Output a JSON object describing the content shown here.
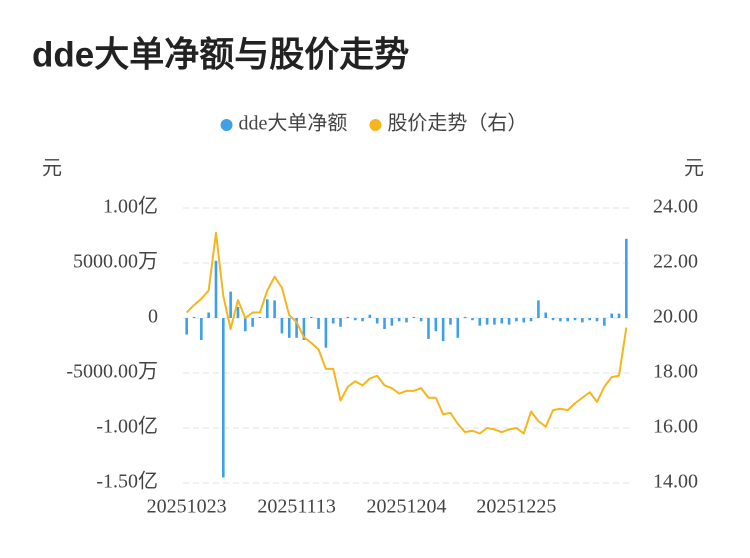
{
  "chart_data": {
    "type": "bar-line",
    "title": "dde大单净额与股价走势",
    "y_label": "元",
    "y2_label": "元",
    "categories": [
      "20251023",
      null,
      null,
      null,
      null,
      null,
      null,
      null,
      null,
      null,
      null,
      null,
      null,
      null,
      null,
      "20251113",
      null,
      null,
      null,
      null,
      null,
      null,
      null,
      null,
      null,
      null,
      null,
      null,
      null,
      null,
      "20251204",
      null,
      null,
      null,
      null,
      null,
      null,
      null,
      null,
      null,
      null,
      null,
      null,
      null,
      null,
      "20251225",
      null,
      null,
      null,
      null,
      null,
      null,
      null,
      null,
      null,
      null,
      null,
      null,
      null,
      null,
      null
    ],
    "series": [
      {
        "name": "dde大单净额",
        "color": "#3ea0e8",
        "type": "bar",
        "values": [
          -15000000,
          1000000,
          -20000000,
          5000000,
          52000000,
          -145000000,
          24000000,
          10000000,
          -12000000,
          -8000000,
          1000000,
          17000000,
          16000000,
          -14000000,
          -18000000,
          -18000000,
          -20000000,
          1000000,
          -10000000,
          -27000000,
          -5000000,
          -8000000,
          1000000,
          -2000000,
          -3000000,
          3000000,
          -5000000,
          -10000000,
          -7000000,
          -3000000,
          -4000000,
          1000000,
          -3000000,
          -19000000,
          -12000000,
          -21000000,
          -6000000,
          -18000000,
          1000000,
          -2000000,
          -7000000,
          -6000000,
          -6000000,
          -5000000,
          -6000000,
          -3000000,
          -4000000,
          -3000000,
          16000000,
          5000000,
          -2000000,
          -3000000,
          -3000000,
          -2000000,
          -4000000,
          -2000000,
          -3000000,
          -7000000,
          4000000,
          4000000,
          72000000
        ]
      },
      {
        "name": "股价走势（右）",
        "color": "#f5b51e",
        "type": "line",
        "axis": "y2",
        "values": [
          20.2,
          20.47,
          20.7,
          21.0,
          23.1,
          20.8,
          19.6,
          20.65,
          20.0,
          20.2,
          20.2,
          21.0,
          21.5,
          21.1,
          20.1,
          19.85,
          19.3,
          19.1,
          18.85,
          18.15,
          18.15,
          17.0,
          17.5,
          17.7,
          17.55,
          17.8,
          17.9,
          17.55,
          17.45,
          17.25,
          17.35,
          17.35,
          17.45,
          17.1,
          17.1,
          16.5,
          16.55,
          16.15,
          15.85,
          15.9,
          15.8,
          16.0,
          15.95,
          15.85,
          15.95,
          16.0,
          15.8,
          16.6,
          16.25,
          16.05,
          16.65,
          16.7,
          16.65,
          16.9,
          17.1,
          17.3,
          16.95,
          17.5,
          17.85,
          17.9,
          19.65
        ]
      }
    ],
    "ylim": [
      -150000000,
      100000000
    ],
    "yticks": [
      {
        "value": -150000000,
        "label": "-1.50亿"
      },
      {
        "value": -100000000,
        "label": "-1.00亿"
      },
      {
        "value": -50000000,
        "label": "-5000.00万"
      },
      0,
      {
        "value": 50000000,
        "label": "5000.00万"
      },
      {
        "value": 100000000,
        "label": "1.00亿"
      }
    ],
    "y2lim": [
      14,
      24
    ],
    "y2ticks": [
      {
        "value": 14,
        "label": "14.00"
      },
      {
        "value": 16,
        "label": "16.00"
      },
      {
        "value": 18,
        "label": "18.00"
      },
      {
        "value": 20,
        "label": "20.00"
      },
      {
        "value": 22,
        "label": "22.00"
      },
      {
        "value": 24,
        "label": "24.00"
      }
    ],
    "grid": true,
    "legend": "top"
  }
}
